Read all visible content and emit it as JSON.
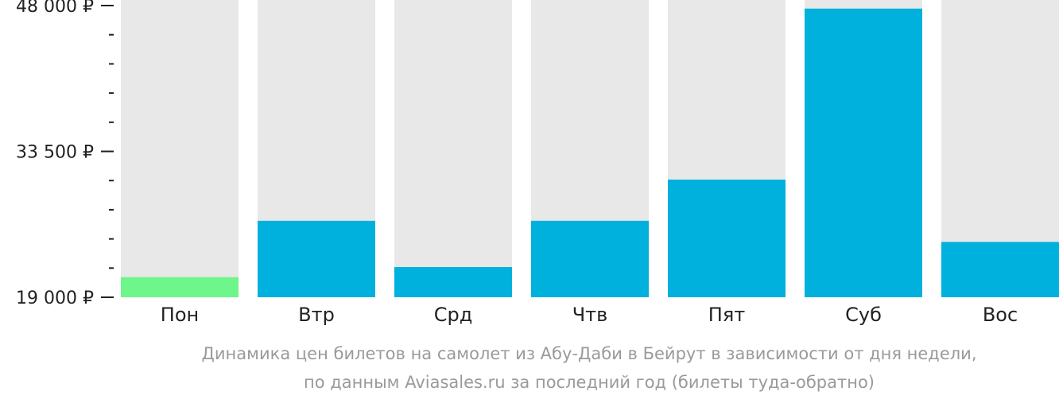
{
  "chart_data": {
    "type": "bar",
    "categories": [
      "Пон",
      "Втр",
      "Срд",
      "Чтв",
      "Пят",
      "Суб",
      "Вос"
    ],
    "values": [
      21000,
      26600,
      22000,
      26600,
      30700,
      47700,
      24500
    ],
    "highlight_index": 0,
    "ylim": [
      19000,
      48000
    ],
    "yticks": [
      {
        "value": 48000,
        "label": "48 000 ₽"
      },
      {
        "value": 33500,
        "label": "33 500 ₽"
      },
      {
        "value": 19000,
        "label": "19 000 ₽"
      }
    ],
    "minor_ticks_per_interval": 4,
    "colors": {
      "bar": "#00b0dd",
      "bar_highlight": "#6ef68a",
      "track": "#e8e8e8",
      "axis": "#222222"
    },
    "caption": [
      "Динамика цен билетов на самолет из Абу-Даби в Бейрут в зависимости от дня недели,",
      "по данным Aviasales.ru за последний год (билеты туда-обратно)"
    ]
  }
}
